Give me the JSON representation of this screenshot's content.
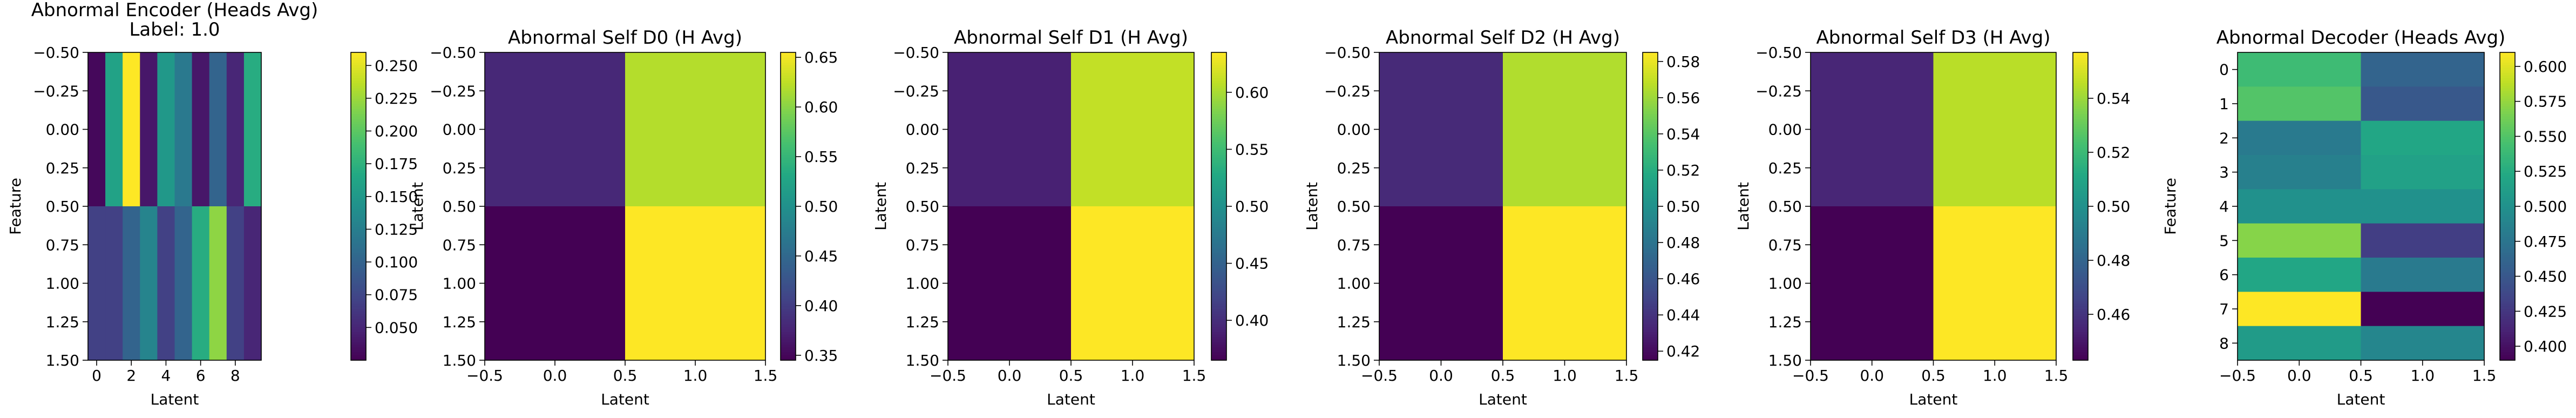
{
  "chart_data": [
    {
      "type": "heatmap",
      "title": "Abnormal Encoder (Heads Avg)",
      "subtitle": "Label: 1.0",
      "xlabel": "Latent",
      "ylabel": "Feature",
      "xlim": [
        -0.5,
        9.5
      ],
      "ylim": [
        1.5,
        -0.5
      ],
      "xticks": [
        0,
        2,
        4,
        6,
        8
      ],
      "xtick_labels": [
        "0",
        "2",
        "4",
        "6",
        "8"
      ],
      "yticks": [
        -0.5,
        -0.25,
        0.0,
        0.25,
        0.5,
        0.75,
        1.0,
        1.25,
        1.5
      ],
      "ytick_labels": [
        "−0.50",
        "−0.25",
        "0.00",
        "0.25",
        "0.50",
        "0.75",
        "1.00",
        "1.25",
        "1.50"
      ],
      "cmap": "viridis",
      "vmin": 0.025,
      "vmax": 0.26,
      "colorbar_ticks": [
        0.05,
        0.075,
        0.1,
        0.125,
        0.15,
        0.175,
        0.2,
        0.225,
        0.25
      ],
      "colorbar_labels": [
        "0.050",
        "0.075",
        "0.100",
        "0.125",
        "0.150",
        "0.175",
        "0.200",
        "0.225",
        "0.250"
      ],
      "values": [
        [
          0.03,
          0.16,
          0.26,
          0.04,
          0.15,
          0.12,
          0.04,
          0.1,
          0.05,
          0.17
        ],
        [
          0.07,
          0.07,
          0.1,
          0.13,
          0.07,
          0.1,
          0.17,
          0.22,
          0.07,
          0.05
        ]
      ]
    },
    {
      "type": "heatmap",
      "title": "Abnormal Self D0 (H Avg)",
      "xlabel": "Latent",
      "ylabel": "Latent",
      "xlim": [
        -0.5,
        1.5
      ],
      "ylim": [
        1.5,
        -0.5
      ],
      "xticks": [
        -0.5,
        0.0,
        0.5,
        1.0,
        1.5
      ],
      "xtick_labels": [
        "−0.5",
        "0.0",
        "0.5",
        "1.0",
        "1.5"
      ],
      "yticks": [
        -0.5,
        -0.25,
        0.0,
        0.25,
        0.5,
        0.75,
        1.0,
        1.25,
        1.5
      ],
      "ytick_labels": [
        "−0.50",
        "−0.25",
        "0.00",
        "0.25",
        "0.50",
        "0.75",
        "1.00",
        "1.25",
        "1.50"
      ],
      "cmap": "viridis",
      "vmin": 0.345,
      "vmax": 0.655,
      "colorbar_ticks": [
        0.35,
        0.4,
        0.45,
        0.5,
        0.55,
        0.6,
        0.65
      ],
      "colorbar_labels": [
        "0.35",
        "0.40",
        "0.45",
        "0.50",
        "0.55",
        "0.60",
        "0.65"
      ],
      "values": [
        [
          0.38,
          0.62
        ],
        [
          0.345,
          0.655
        ]
      ]
    },
    {
      "type": "heatmap",
      "title": "Abnormal Self D1 (H Avg)",
      "xlabel": "Latent",
      "ylabel": "Latent",
      "xlim": [
        -0.5,
        1.5
      ],
      "ylim": [
        1.5,
        -0.5
      ],
      "xticks": [
        -0.5,
        0.0,
        0.5,
        1.0,
        1.5
      ],
      "xtick_labels": [
        "−0.5",
        "0.0",
        "0.5",
        "1.0",
        "1.5"
      ],
      "yticks": [
        -0.5,
        -0.25,
        0.0,
        0.25,
        0.5,
        0.75,
        1.0,
        1.25,
        1.5
      ],
      "ytick_labels": [
        "−0.50",
        "−0.25",
        "0.00",
        "0.25",
        "0.50",
        "0.75",
        "1.00",
        "1.25",
        "1.50"
      ],
      "cmap": "viridis",
      "vmin": 0.365,
      "vmax": 0.635,
      "colorbar_ticks": [
        0.4,
        0.45,
        0.5,
        0.55,
        0.6
      ],
      "colorbar_labels": [
        "0.40",
        "0.45",
        "0.50",
        "0.55",
        "0.60"
      ],
      "values": [
        [
          0.39,
          0.61
        ],
        [
          0.365,
          0.635
        ]
      ]
    },
    {
      "type": "heatmap",
      "title": "Abnormal Self D2 (H Avg)",
      "xlabel": "Latent",
      "ylabel": "Latent",
      "xlim": [
        -0.5,
        1.5
      ],
      "ylim": [
        1.5,
        -0.5
      ],
      "xticks": [
        -0.5,
        0.0,
        0.5,
        1.0,
        1.5
      ],
      "xtick_labels": [
        "−0.5",
        "0.0",
        "0.5",
        "1.0",
        "1.5"
      ],
      "yticks": [
        -0.5,
        -0.25,
        0.0,
        0.25,
        0.5,
        0.75,
        1.0,
        1.25,
        1.5
      ],
      "ytick_labels": [
        "−0.50",
        "−0.25",
        "0.00",
        "0.25",
        "0.50",
        "0.75",
        "1.00",
        "1.25",
        "1.50"
      ],
      "cmap": "viridis",
      "vmin": 0.415,
      "vmax": 0.585,
      "colorbar_ticks": [
        0.42,
        0.44,
        0.46,
        0.48,
        0.5,
        0.52,
        0.54,
        0.56,
        0.58
      ],
      "colorbar_labels": [
        "0.42",
        "0.44",
        "0.46",
        "0.48",
        "0.50",
        "0.52",
        "0.54",
        "0.56",
        "0.58"
      ],
      "values": [
        [
          0.435,
          0.565
        ],
        [
          0.415,
          0.585
        ]
      ]
    },
    {
      "type": "heatmap",
      "title": "Abnormal Self D3 (H Avg)",
      "xlabel": "Latent",
      "ylabel": "Latent",
      "xlim": [
        -0.5,
        1.5
      ],
      "ylim": [
        1.5,
        -0.5
      ],
      "xticks": [
        -0.5,
        0.0,
        0.5,
        1.0,
        1.5
      ],
      "xtick_labels": [
        "−0.5",
        "0.0",
        "0.5",
        "1.0",
        "1.5"
      ],
      "yticks": [
        -0.5,
        -0.25,
        0.0,
        0.25,
        0.5,
        0.75,
        1.0,
        1.25,
        1.5
      ],
      "ytick_labels": [
        "−0.50",
        "−0.25",
        "0.00",
        "0.25",
        "0.50",
        "0.75",
        "1.00",
        "1.25",
        "1.50"
      ],
      "cmap": "viridis",
      "vmin": 0.443,
      "vmax": 0.557,
      "colorbar_ticks": [
        0.46,
        0.48,
        0.5,
        0.52,
        0.54
      ],
      "colorbar_labels": [
        "0.46",
        "0.48",
        "0.50",
        "0.52",
        "0.54"
      ],
      "values": [
        [
          0.455,
          0.545
        ],
        [
          0.443,
          0.557
        ]
      ]
    },
    {
      "type": "heatmap",
      "title": "Abnormal Decoder (Heads Avg)",
      "xlabel": "Latent",
      "ylabel": "Feature",
      "xlim": [
        -0.5,
        1.5
      ],
      "ylim": [
        8.5,
        -0.5
      ],
      "xticks": [
        -0.5,
        0.0,
        0.5,
        1.0,
        1.5
      ],
      "xtick_labels": [
        "−0.5",
        "0.0",
        "0.5",
        "1.0",
        "1.5"
      ],
      "yticks": [
        0,
        1,
        2,
        3,
        4,
        5,
        6,
        7,
        8
      ],
      "ytick_labels": [
        "0",
        "1",
        "2",
        "3",
        "4",
        "5",
        "6",
        "7",
        "8"
      ],
      "cmap": "viridis",
      "vmin": 0.39,
      "vmax": 0.61,
      "colorbar_ticks": [
        0.4,
        0.425,
        0.45,
        0.475,
        0.5,
        0.525,
        0.55,
        0.575,
        0.6
      ],
      "colorbar_labels": [
        "0.400",
        "0.425",
        "0.450",
        "0.475",
        "0.500",
        "0.525",
        "0.550",
        "0.575",
        "0.600"
      ],
      "values": [
        [
          0.54,
          0.46
        ],
        [
          0.55,
          0.45
        ],
        [
          0.48,
          0.52
        ],
        [
          0.485,
          0.515
        ],
        [
          0.5,
          0.5
        ],
        [
          0.57,
          0.43
        ],
        [
          0.52,
          0.48
        ],
        [
          0.61,
          0.39
        ],
        [
          0.51,
          0.49
        ]
      ]
    }
  ]
}
